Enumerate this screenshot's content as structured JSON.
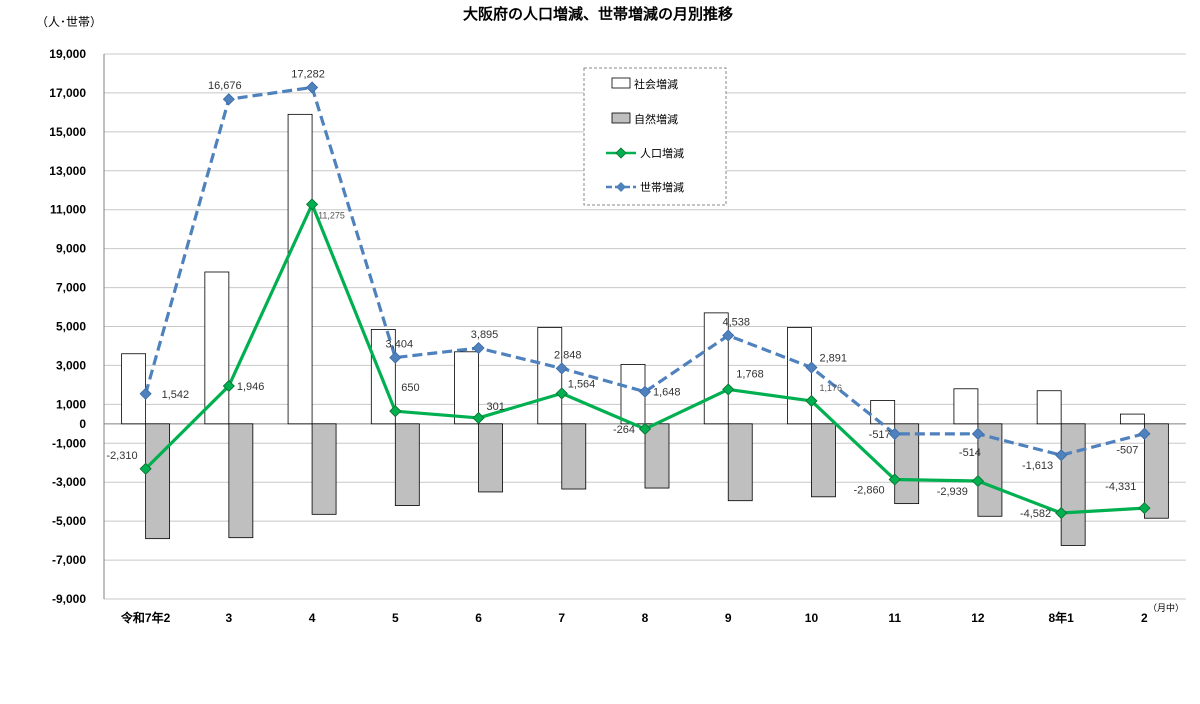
{
  "chart_data": {
    "type": "bar",
    "title": "大阪府の人口増減、世帯増減の月別推移",
    "unit_label": "（人･世帯）",
    "x_unit_label": "（月中）",
    "categories": [
      "令和7年2",
      "3",
      "4",
      "5",
      "6",
      "7",
      "8",
      "9",
      "10",
      "11",
      "12",
      "8年1",
      "2"
    ],
    "ylim": [
      -9000,
      19000
    ],
    "yticks": [
      19000,
      17000,
      15000,
      13000,
      11000,
      9000,
      7000,
      5000,
      3000,
      1000,
      0,
      -1000,
      -3000,
      -5000,
      -7000,
      -9000
    ],
    "ytick_labels": [
      "19,000",
      "17,000",
      "15,000",
      "13,000",
      "11,000",
      "9,000",
      "7,000",
      "5,000",
      "3,000",
      "1,000",
      "0",
      "-1,000",
      "-3,000",
      "-5,000",
      "-7,000",
      "-9,000"
    ],
    "grid": true,
    "legend_position": "top-center",
    "series": [
      {
        "name": "社会増減",
        "kind": "bar",
        "color": "#ffffff",
        "stroke": "#000000",
        "values": [
          3600,
          7800,
          15900,
          4850,
          3700,
          4950,
          3050,
          5700,
          4950,
          1200,
          1800,
          1700,
          500
        ]
      },
      {
        "name": "自然増減",
        "kind": "bar",
        "color": "#bfbfbf",
        "stroke": "#000000",
        "values": [
          -5900,
          -5850,
          -4650,
          -4200,
          -3500,
          -3350,
          -3300,
          -3950,
          -3750,
          -4100,
          -4750,
          -6250,
          -4850
        ]
      },
      {
        "name": "人口増減",
        "kind": "line",
        "color": "#00b050",
        "dash": false,
        "values": [
          -2310,
          1946,
          11275,
          650,
          301,
          1564,
          -264,
          1768,
          1176,
          -2860,
          -2939,
          -4582,
          -4331
        ],
        "labels": [
          "-2,310",
          "1,946",
          "11,275",
          "650",
          "301",
          "1,564",
          "-264",
          "1,768",
          "1,176",
          "-2,860",
          "-2,939",
          "-4,582",
          "-4,331"
        ]
      },
      {
        "name": "世帯増減",
        "kind": "line",
        "color": "#4f81bd",
        "dash": true,
        "values": [
          1542,
          16676,
          17282,
          3404,
          3895,
          2848,
          1648,
          4538,
          2891,
          -517,
          -514,
          -1613,
          -507
        ],
        "labels": [
          "1,542",
          "16,676",
          "17,282",
          "3,404",
          "3,895",
          "2,848",
          "1,648",
          "4,538",
          "2,891",
          "-517",
          "-514",
          "-1,613",
          "-507"
        ]
      }
    ]
  }
}
